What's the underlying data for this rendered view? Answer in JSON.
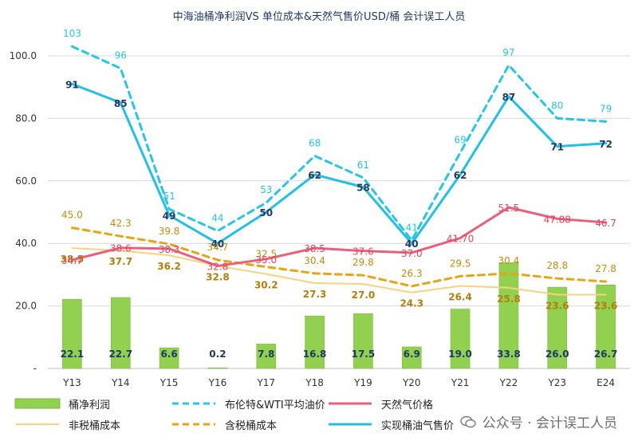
{
  "title": "中海油桶净利润VS 单位成本&天然气售价USD/桶 会计误工人员",
  "watermark": "公众号 · 会计误工人员",
  "colors": {
    "bar": "#92d050",
    "bar_edge": "#7cbc3a",
    "brent": "#26c6e6",
    "gas": "#e8607c",
    "non_tax_cost": "#f8d27c",
    "tax_cost": "#e8a317",
    "realized": "#22c0e4",
    "grid": "#d9d9d9",
    "axis_text": "#333333",
    "bar_label": "#1f3a68",
    "realized_label": "#1f3a68"
  },
  "legend": [
    {
      "key": "bar",
      "label": "桶净利润",
      "style": "bar"
    },
    {
      "key": "brent",
      "label": "布伦特&WTI平均油价",
      "style": "dashed"
    },
    {
      "key": "gas",
      "label": "天然气价格",
      "style": "solid"
    },
    {
      "key": "non_tax_cost",
      "label": "非税桶成本",
      "style": "solid-thin"
    },
    {
      "key": "tax_cost",
      "label": "含税桶成本",
      "style": "dashed"
    },
    {
      "key": "realized",
      "label": "实现桶油气售价",
      "style": "solid"
    }
  ],
  "chart_data": {
    "type": "bar",
    "categories": [
      "Y13",
      "Y14",
      "Y15",
      "Y16",
      "Y17",
      "Y18",
      "Y19",
      "Y20",
      "Y21",
      "Y22",
      "Y23",
      "E24"
    ],
    "ylim": [
      0,
      100
    ],
    "yticks": [
      "-",
      "20.0",
      "40.0",
      "60.0",
      "80.0",
      "100.0"
    ],
    "ytick_values": [
      0,
      20,
      40,
      60,
      80,
      100
    ],
    "grid": true,
    "legend_position": "bottom",
    "series": [
      {
        "key": "bar",
        "name": "桶净利润",
        "kind": "bar",
        "values": [
          22.1,
          22.7,
          6.6,
          0.2,
          7.8,
          16.8,
          17.5,
          6.9,
          19.0,
          33.8,
          26.0,
          26.7
        ],
        "labels": [
          "22.1",
          "22.7",
          "6.6",
          "0.2",
          "7.8",
          "16.8",
          "17.5",
          "6.9",
          "19.0",
          "33.8",
          "26.0",
          "26.7"
        ]
      },
      {
        "key": "brent",
        "name": "布伦特&WTI平均油价",
        "kind": "line-dashed",
        "values": [
          103,
          96,
          51,
          44,
          53,
          68,
          61,
          41,
          69,
          97,
          80,
          79
        ],
        "labels": [
          "103",
          "96",
          "51",
          "44",
          "53",
          "68",
          "61",
          "41",
          "69",
          "97",
          "80",
          "79"
        ]
      },
      {
        "key": "gas",
        "name": "天然气价格",
        "kind": "line",
        "values": [
          34.7,
          38.6,
          38.3,
          32.8,
          35.0,
          38.5,
          37.6,
          37.0,
          41.7,
          51.5,
          47.88,
          46.7
        ],
        "labels": [
          "34.7",
          "38.6",
          "38.3",
          "32.8",
          "35.0",
          "38.5",
          "37.6",
          "37.0",
          "41.70",
          "51.5",
          "47.88",
          "46.7"
        ]
      },
      {
        "key": "non_tax_cost",
        "name": "非税桶成本",
        "kind": "line-thin",
        "values": [
          38.5,
          37.7,
          36.2,
          32.8,
          30.2,
          27.3,
          27.0,
          24.3,
          26.4,
          25.8,
          23.6,
          23.6
        ],
        "labels": [
          "38.5",
          "37.7",
          "36.2",
          "32.8",
          "30.2",
          "27.3",
          "27.0",
          "24.3",
          "26.4",
          "25.8",
          "23.6",
          "23.6"
        ]
      },
      {
        "key": "tax_cost",
        "name": "含税桶成本",
        "kind": "line-dashed",
        "values": [
          45.0,
          42.3,
          39.8,
          34.7,
          32.5,
          30.4,
          29.8,
          26.3,
          29.5,
          30.4,
          28.8,
          27.8
        ],
        "labels": [
          "45.0",
          "42.3",
          "39.8",
          "34.7",
          "32.5",
          "30.4",
          "29.8",
          "26.3",
          "29.5",
          "30.4",
          "28.8",
          "27.8"
        ]
      },
      {
        "key": "realized",
        "name": "实现桶油气售价",
        "kind": "line",
        "values": [
          91,
          85,
          49,
          40,
          50,
          62,
          58,
          40,
          62,
          87,
          71,
          72
        ],
        "labels": [
          "91",
          "85",
          "49",
          "40",
          "50",
          "62",
          "58",
          "40",
          "62",
          "87",
          "71",
          "72"
        ]
      }
    ]
  }
}
